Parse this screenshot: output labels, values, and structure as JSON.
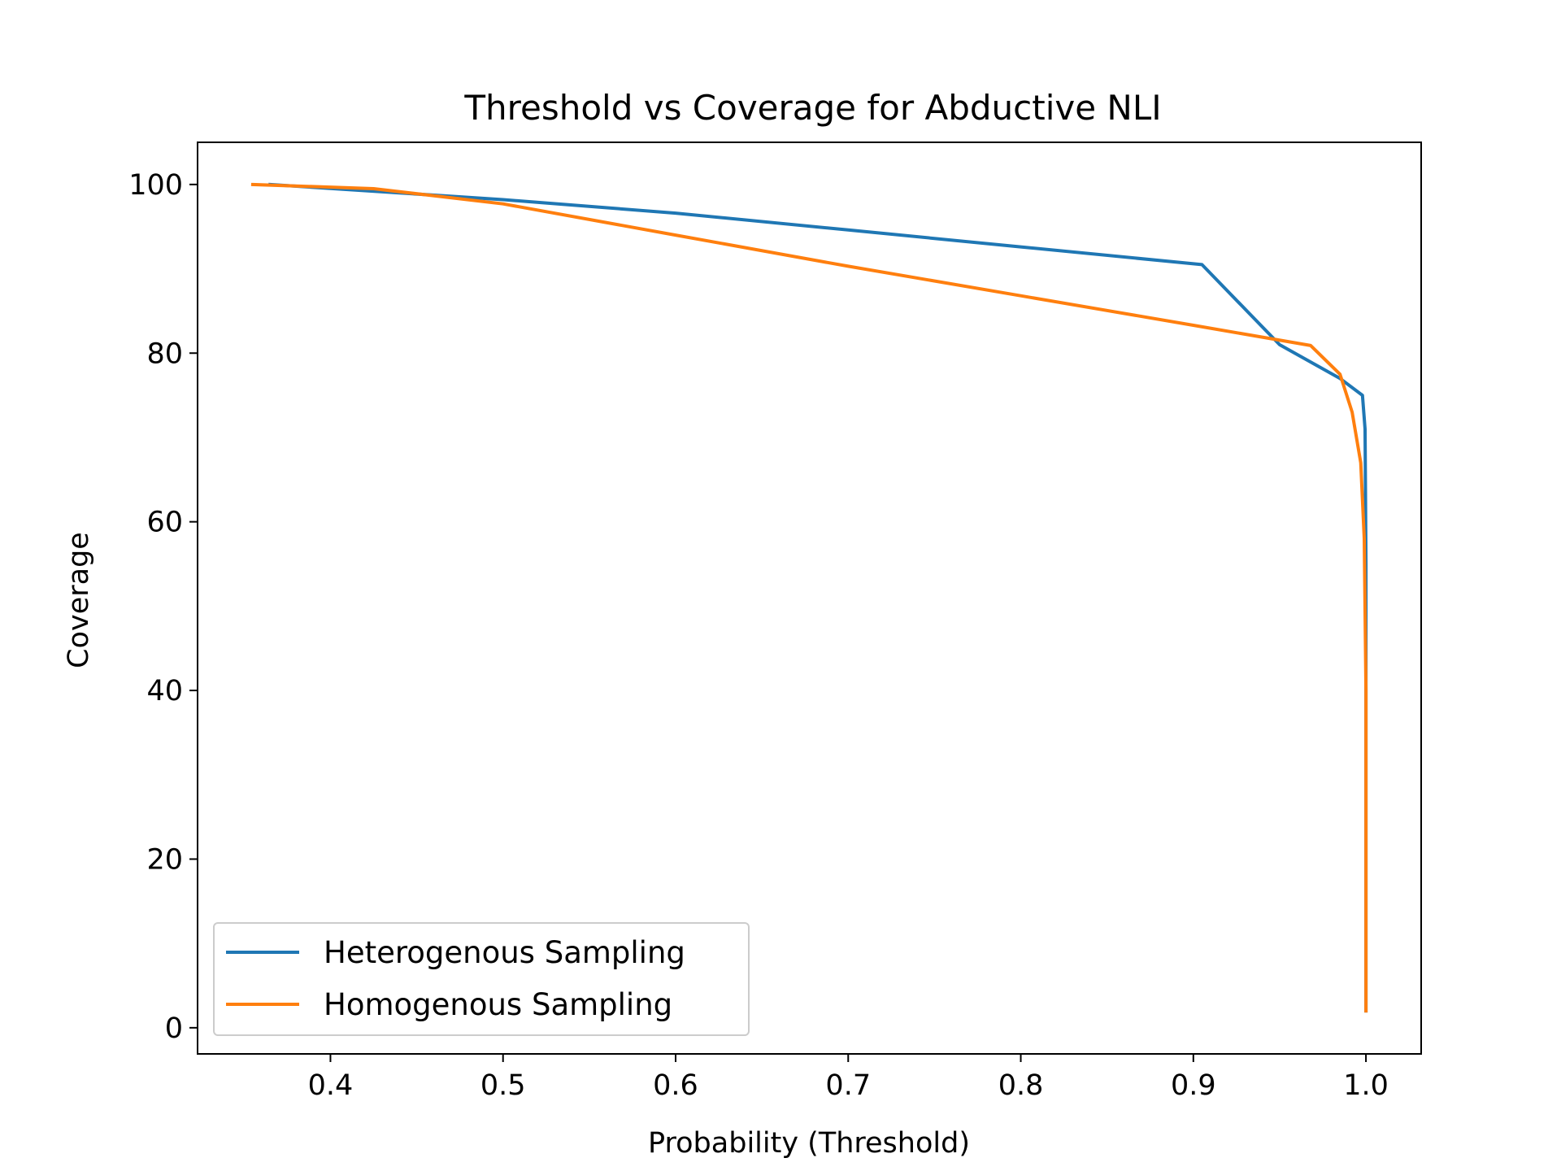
{
  "chart_data": {
    "type": "line",
    "title": "Threshold vs Coverage for Abductive NLI",
    "xlabel": "Probability (Threshold)",
    "ylabel": "Coverage",
    "xlim": [
      0.323,
      1.032
    ],
    "ylim": [
      -3.1,
      105.0
    ],
    "xticks": [
      "0.4",
      "0.5",
      "0.6",
      "0.7",
      "0.8",
      "0.9",
      "1.0"
    ],
    "yticks": [
      "0",
      "20",
      "40",
      "60",
      "80",
      "100"
    ],
    "grid": false,
    "legend_position": "lower-left",
    "series": [
      {
        "name": "Heterogenous Sampling",
        "color": "#1f77b4",
        "x": [
          0.365,
          0.5,
          0.6,
          0.7,
          0.8,
          0.905,
          0.95,
          0.985,
          0.998,
          0.9995,
          1.0,
          1.0,
          1.0
        ],
        "y": [
          100.0,
          98.2,
          96.6,
          94.6,
          92.6,
          90.5,
          81.0,
          77.0,
          75.0,
          71.0,
          55.0,
          30.0,
          2.0
        ]
      },
      {
        "name": "Homogenous Sampling",
        "color": "#ff7f0e",
        "x": [
          0.355,
          0.425,
          0.5,
          0.6,
          0.7,
          0.8,
          0.9,
          0.968,
          0.985,
          0.992,
          0.997,
          0.999,
          1.0,
          1.0
        ],
        "y": [
          100.0,
          99.5,
          97.7,
          94.0,
          90.3,
          86.8,
          83.3,
          80.9,
          77.5,
          73.0,
          67.0,
          58.0,
          40.0,
          2.0
        ]
      }
    ]
  }
}
